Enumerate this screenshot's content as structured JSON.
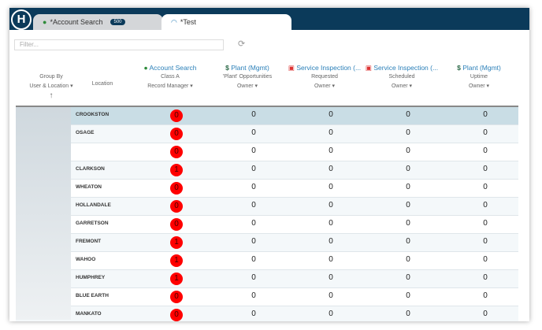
{
  "tabs": [
    {
      "label": "*Account Search",
      "badge": "500"
    },
    {
      "label": "*Test"
    }
  ],
  "filter": {
    "placeholder": "Filter..."
  },
  "columns": {
    "group": {
      "line1": "Group By",
      "line2": "User & Location ▾",
      "sort": "↑"
    },
    "location": "Location",
    "c1": {
      "title": "Account Search",
      "sub": "Class A",
      "owner": "Record Manager ▾"
    },
    "c2": {
      "title": "Plant (Mgmt)",
      "sub": "'Plant' Opportunities",
      "owner": "Owner ▾"
    },
    "c3": {
      "title": "Service Inspection (...",
      "sub": "Requested",
      "owner": "Owner ▾"
    },
    "c4": {
      "title": "Service Inspection (...",
      "sub": "Scheduled",
      "owner": "Owner ▾"
    },
    "c5": {
      "title": "Plant (Mgmt)",
      "sub": "Uptime",
      "owner": "Owner ▾"
    }
  },
  "rows": [
    {
      "loc": "CROOKSTON",
      "v": [
        "0",
        "0",
        "0",
        "0",
        "0"
      ]
    },
    {
      "loc": "OSAGE",
      "v": [
        "0",
        "0",
        "0",
        "0",
        "0"
      ]
    },
    {
      "loc": "",
      "v": [
        "0",
        "0",
        "0",
        "0",
        "0"
      ]
    },
    {
      "loc": "CLARKSON",
      "v": [
        "1",
        "0",
        "0",
        "0",
        "0"
      ]
    },
    {
      "loc": "WHEATON",
      "v": [
        "0",
        "0",
        "0",
        "0",
        "0"
      ]
    },
    {
      "loc": "HOLLANDALE",
      "v": [
        "0",
        "0",
        "0",
        "0",
        "0"
      ]
    },
    {
      "loc": "GARRETSON",
      "v": [
        "0",
        "0",
        "0",
        "0",
        "0"
      ]
    },
    {
      "loc": "FREMONT",
      "v": [
        "1",
        "0",
        "0",
        "0",
        "0"
      ]
    },
    {
      "loc": "WAHOO",
      "v": [
        "1",
        "0",
        "0",
        "0",
        "0"
      ]
    },
    {
      "loc": "HUMPHREY",
      "v": [
        "1",
        "0",
        "0",
        "0",
        "0"
      ]
    },
    {
      "loc": "BLUE EARTH",
      "v": [
        "0",
        "0",
        "0",
        "0",
        "0"
      ]
    },
    {
      "loc": "MANKATO",
      "v": [
        "0",
        "0",
        "0",
        "0",
        "0"
      ]
    }
  ]
}
